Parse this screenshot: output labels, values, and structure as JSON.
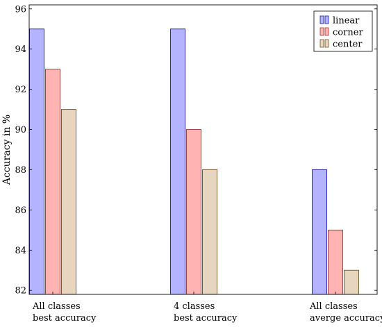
{
  "chart_data": {
    "type": "bar",
    "categories": [
      [
        "All classes",
        "best accuracy"
      ],
      [
        "4 classes",
        "best accuracy"
      ],
      [
        "All classes",
        "averge accuracy"
      ]
    ],
    "series": [
      {
        "name": "linear",
        "values": [
          95,
          95,
          88
        ],
        "fill": "#b3b3ff",
        "stroke": "#1a1aa6"
      },
      {
        "name": "corner",
        "values": [
          93,
          90,
          85
        ],
        "fill": "#ffb3b3",
        "stroke": "#993333"
      },
      {
        "name": "center",
        "values": [
          91,
          88,
          83
        ],
        "fill": "#e6d6bf",
        "stroke": "#705028"
      }
    ],
    "title": "",
    "xlabel": "",
    "ylabel": "Accuracy in %",
    "ylim": [
      81.8,
      96.2
    ],
    "yticks": [
      82,
      84,
      86,
      88,
      90,
      92,
      94,
      96
    ],
    "grid": false,
    "legend_position": "top-right"
  }
}
